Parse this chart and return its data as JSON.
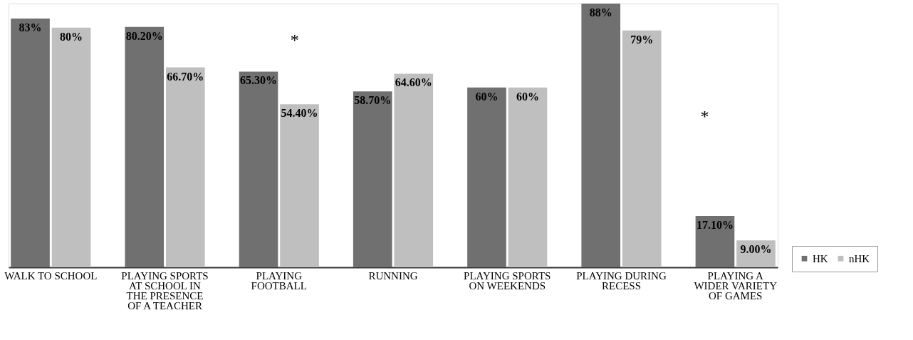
{
  "chart_data": {
    "type": "bar",
    "categories": [
      "WALK TO SCHOOL",
      "PLAYING SPORTS AT SCHOOL IN THE PRESENCE OF A TEACHER",
      "PLAYING FOOTBALL",
      "RUNNING",
      "PLAYING SPORTS ON WEEKENDS",
      "PLAYING DURING RECESS",
      "PLAYING A WIDER VARIETY OF GAMES"
    ],
    "series": [
      {
        "name": "HK",
        "color": "#707070",
        "values": [
          83,
          80.2,
          65.3,
          58.7,
          60,
          88,
          17.1
        ],
        "value_labels": [
          "83%",
          "80.20%",
          "65.30%",
          "58.70%",
          "60%",
          "88%",
          "17.10%"
        ]
      },
      {
        "name": "nHK",
        "color": "#bfbfbf",
        "values": [
          80,
          66.7,
          54.4,
          64.6,
          60,
          79,
          9.0
        ],
        "value_labels": [
          "80%",
          "66.70%",
          "54.40%",
          "64.60%",
          "60%",
          "79%",
          "9.00%"
        ]
      }
    ],
    "annotations": [
      "*",
      "*"
    ],
    "legend": "right",
    "grid": false
  }
}
